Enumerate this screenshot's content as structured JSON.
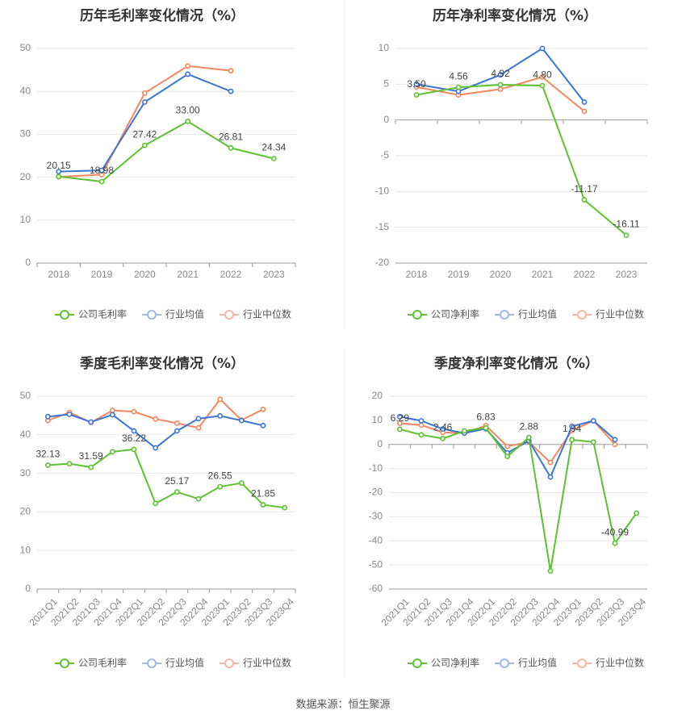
{
  "colors": {
    "company": "#5cc230",
    "industry_avg": "#3b75d8",
    "industry_median": "#f2875e",
    "grid": "#e6e6e6",
    "axis_text": "#888888",
    "title": "#333333",
    "divider": "#eeeeee"
  },
  "legend_icon": "circle-line-icon",
  "footer": {
    "source": "数据来源：恒生聚源"
  },
  "chart_data": [
    {
      "type": "line",
      "title": "历年毛利率变化情况（%）",
      "categories": [
        "2018",
        "2019",
        "2020",
        "2021",
        "2022",
        "2023"
      ],
      "yticks": [
        0,
        10,
        20,
        30,
        40,
        50
      ],
      "ylim": [
        0,
        50
      ],
      "grid": true,
      "legend_position": "bottom",
      "series": [
        {
          "name": "公司毛利率",
          "role": "company",
          "values": [
            20.15,
            18.98,
            27.42,
            33.0,
            26.81,
            24.34
          ],
          "labels": [
            "20.15",
            "18.98",
            "27.42",
            "33.00",
            "26.81",
            "24.34"
          ]
        },
        {
          "name": "行业均值",
          "role": "industry_avg",
          "values": [
            21.3,
            21.6,
            37.5,
            44.0,
            40.0,
            null
          ]
        },
        {
          "name": "行业中位数",
          "role": "industry_median",
          "values": [
            20.1,
            20.6,
            39.6,
            45.9,
            44.8,
            null
          ]
        }
      ]
    },
    {
      "type": "line",
      "title": "历年净利率变化情况（%）",
      "categories": [
        "2018",
        "2019",
        "2020",
        "2021",
        "2022",
        "2023"
      ],
      "yticks": [
        -20,
        -15,
        -10,
        -5,
        0,
        5,
        10
      ],
      "ylim": [
        -20,
        10
      ],
      "grid": true,
      "legend_position": "bottom",
      "series": [
        {
          "name": "公司净利率",
          "role": "company",
          "values": [
            3.5,
            4.56,
            4.92,
            4.8,
            -11.17,
            -16.11
          ],
          "labels": [
            "3.50",
            "4.56",
            "4.92",
            "4.80",
            "-11.17",
            "-16.11"
          ]
        },
        {
          "name": "行业均值",
          "role": "industry_avg",
          "values": [
            5.0,
            4.0,
            6.3,
            10.0,
            2.5,
            null
          ]
        },
        {
          "name": "行业中位数",
          "role": "industry_median",
          "values": [
            4.6,
            3.5,
            4.3,
            6.0,
            1.2,
            null
          ]
        }
      ]
    },
    {
      "type": "line",
      "title": "季度毛利率变化情况（%）",
      "categories": [
        "2021Q1",
        "2021Q2",
        "2021Q3",
        "2021Q4",
        "2022Q1",
        "2022Q2",
        "2022Q3",
        "2022Q4",
        "2023Q1",
        "2023Q2",
        "2023Q3",
        "2023Q4"
      ],
      "yticks": [
        0,
        10,
        20,
        30,
        40,
        50
      ],
      "ylim": [
        0,
        50
      ],
      "grid": true,
      "legend_position": "bottom",
      "series": [
        {
          "name": "公司毛利率",
          "role": "company",
          "values": [
            32.13,
            32.5,
            31.59,
            35.6,
            36.22,
            22.2,
            25.17,
            23.4,
            26.55,
            27.5,
            21.85,
            21.1
          ],
          "labels": [
            "32.13",
            "",
            "31.59",
            "",
            "36.22",
            "",
            "25.17",
            "",
            "26.55",
            "",
            "21.85",
            ""
          ]
        },
        {
          "name": "行业均值",
          "role": "industry_avg",
          "values": [
            44.7,
            45.3,
            43.3,
            45.2,
            41.0,
            36.6,
            41.0,
            44.2,
            44.9,
            43.7,
            42.4,
            null
          ]
        },
        {
          "name": "行业中位数",
          "role": "industry_median",
          "values": [
            43.7,
            45.8,
            43.2,
            46.3,
            46.0,
            44.1,
            43.0,
            41.8,
            49.2,
            43.8,
            46.6,
            null
          ]
        }
      ]
    },
    {
      "type": "line",
      "title": "季度净利率变化情况（%）",
      "categories": [
        "2021Q1",
        "2021Q2",
        "2021Q3",
        "2021Q4",
        "2022Q1",
        "2022Q2",
        "2022Q3",
        "2022Q4",
        "2023Q1",
        "2023Q2",
        "2023Q3",
        "2023Q4"
      ],
      "yticks": [
        -60,
        -50,
        -40,
        -30,
        -20,
        -10,
        0,
        10,
        20
      ],
      "ylim": [
        -60,
        20
      ],
      "grid": true,
      "legend_position": "bottom",
      "series": [
        {
          "name": "公司净利率",
          "role": "company",
          "values": [
            6.29,
            4.0,
            2.46,
            5.6,
            6.83,
            -5.0,
            2.88,
            -52.5,
            1.94,
            1.0,
            -40.99,
            -28.5
          ],
          "labels": [
            "6.29",
            "",
            "2.46",
            "",
            "6.83",
            "",
            "2.88",
            "",
            "1.94",
            "",
            "-40.99",
            ""
          ]
        },
        {
          "name": "行业均值",
          "role": "industry_avg",
          "values": [
            11.5,
            9.8,
            6.4,
            4.7,
            6.5,
            -3.5,
            1.5,
            -13.5,
            7.5,
            9.8,
            2.0,
            null
          ]
        },
        {
          "name": "行业中位数",
          "role": "industry_median",
          "values": [
            8.8,
            8.0,
            5.0,
            4.7,
            7.8,
            -0.8,
            1.0,
            -7.5,
            5.8,
            9.8,
            0.0,
            null
          ]
        }
      ]
    }
  ]
}
